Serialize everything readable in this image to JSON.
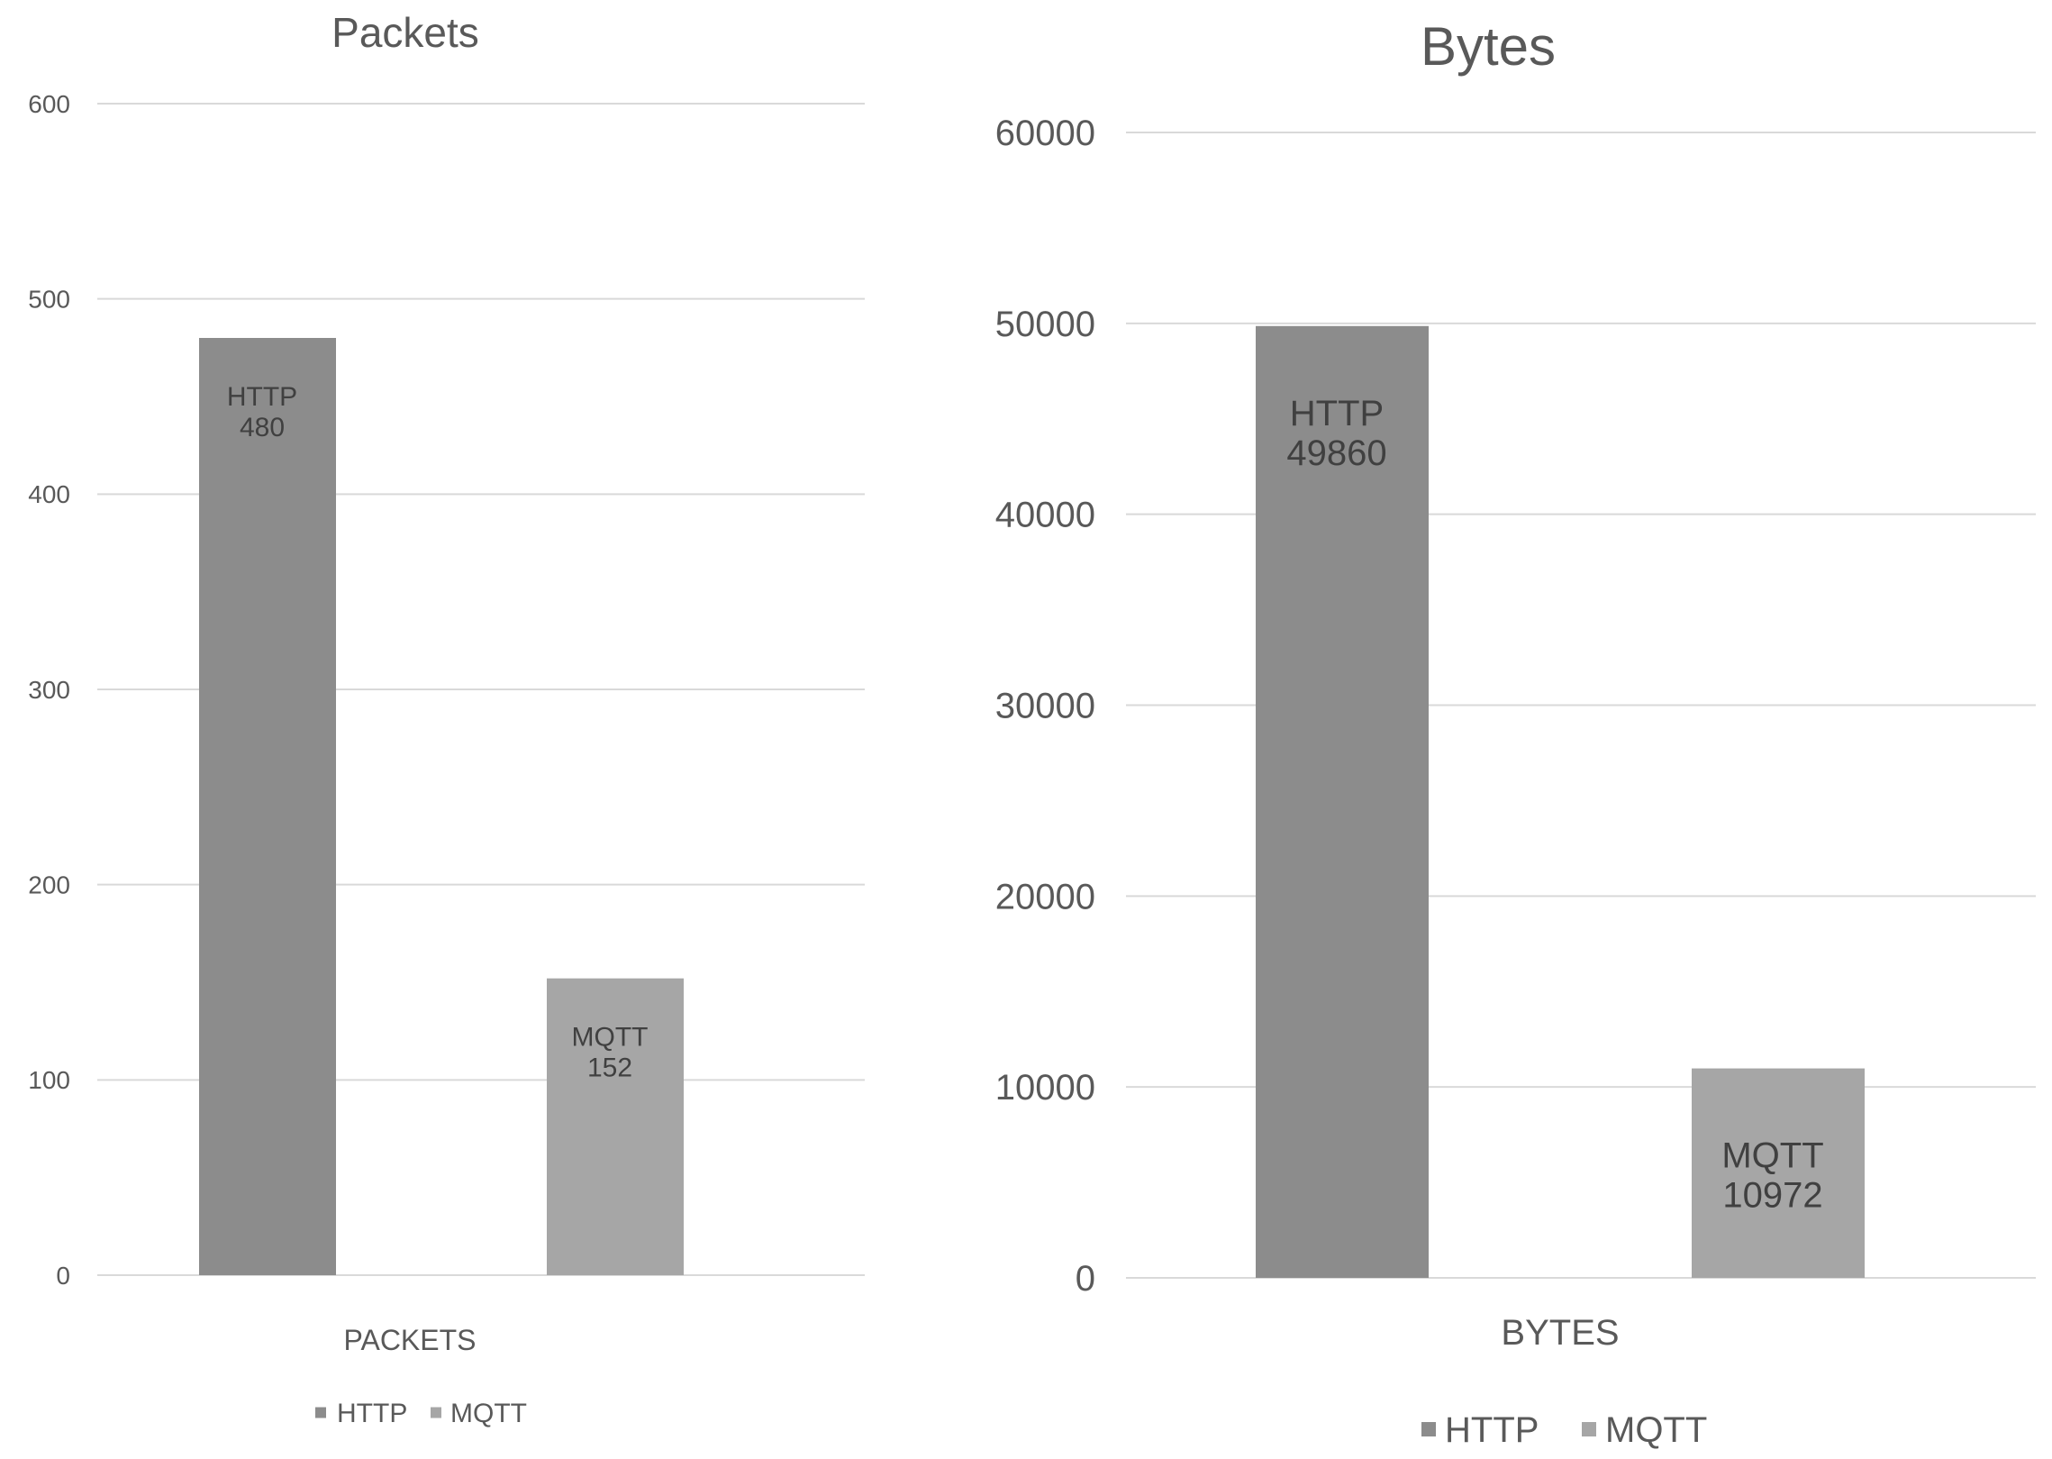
{
  "chart_data": [
    {
      "type": "bar",
      "title": "Packets",
      "xlabel": "PACKETS",
      "ylabel": "",
      "categories": [
        "PACKETS"
      ],
      "series": [
        {
          "name": "HTTP",
          "values": [
            480
          ],
          "color": "#8c8c8c"
        },
        {
          "name": "MQTT",
          "values": [
            152
          ],
          "color": "#a6a6a6"
        }
      ],
      "ylim": [
        0,
        600
      ],
      "yticks": [
        "0",
        "100",
        "200",
        "300",
        "400",
        "500",
        "600"
      ],
      "bar_labels": [
        {
          "series": "HTTP",
          "line1": "HTTP",
          "line2": "480"
        },
        {
          "series": "MQTT",
          "line1": "MQTT",
          "line2": "152"
        }
      ],
      "legend": [
        {
          "name": "HTTP",
          "color": "#8c8c8c"
        },
        {
          "name": "MQTT",
          "color": "#a6a6a6"
        }
      ],
      "legend_position": "bottom",
      "grid": true
    },
    {
      "type": "bar",
      "title": "Bytes",
      "xlabel": "BYTES",
      "ylabel": "",
      "categories": [
        "BYTES"
      ],
      "series": [
        {
          "name": "HTTP",
          "values": [
            49860
          ],
          "color": "#8c8c8c"
        },
        {
          "name": "MQTT",
          "values": [
            10972
          ],
          "color": "#a6a6a6"
        }
      ],
      "ylim": [
        0,
        60000
      ],
      "yticks": [
        "0",
        "10000",
        "20000",
        "30000",
        "40000",
        "50000",
        "60000"
      ],
      "bar_labels": [
        {
          "series": "HTTP",
          "line1": "HTTP",
          "line2": "49860"
        },
        {
          "series": "MQTT",
          "line1": "MQTT",
          "line2": "10972"
        }
      ],
      "legend": [
        {
          "name": "HTTP",
          "color": "#8c8c8c"
        },
        {
          "name": "MQTT",
          "color": "#a6a6a6"
        }
      ],
      "legend_position": "bottom",
      "grid": true
    }
  ],
  "colors": {
    "gridline": "#d9d9d9",
    "axis_text": "#595959",
    "title_text": "#595959",
    "bar_label_text": "#404040"
  }
}
